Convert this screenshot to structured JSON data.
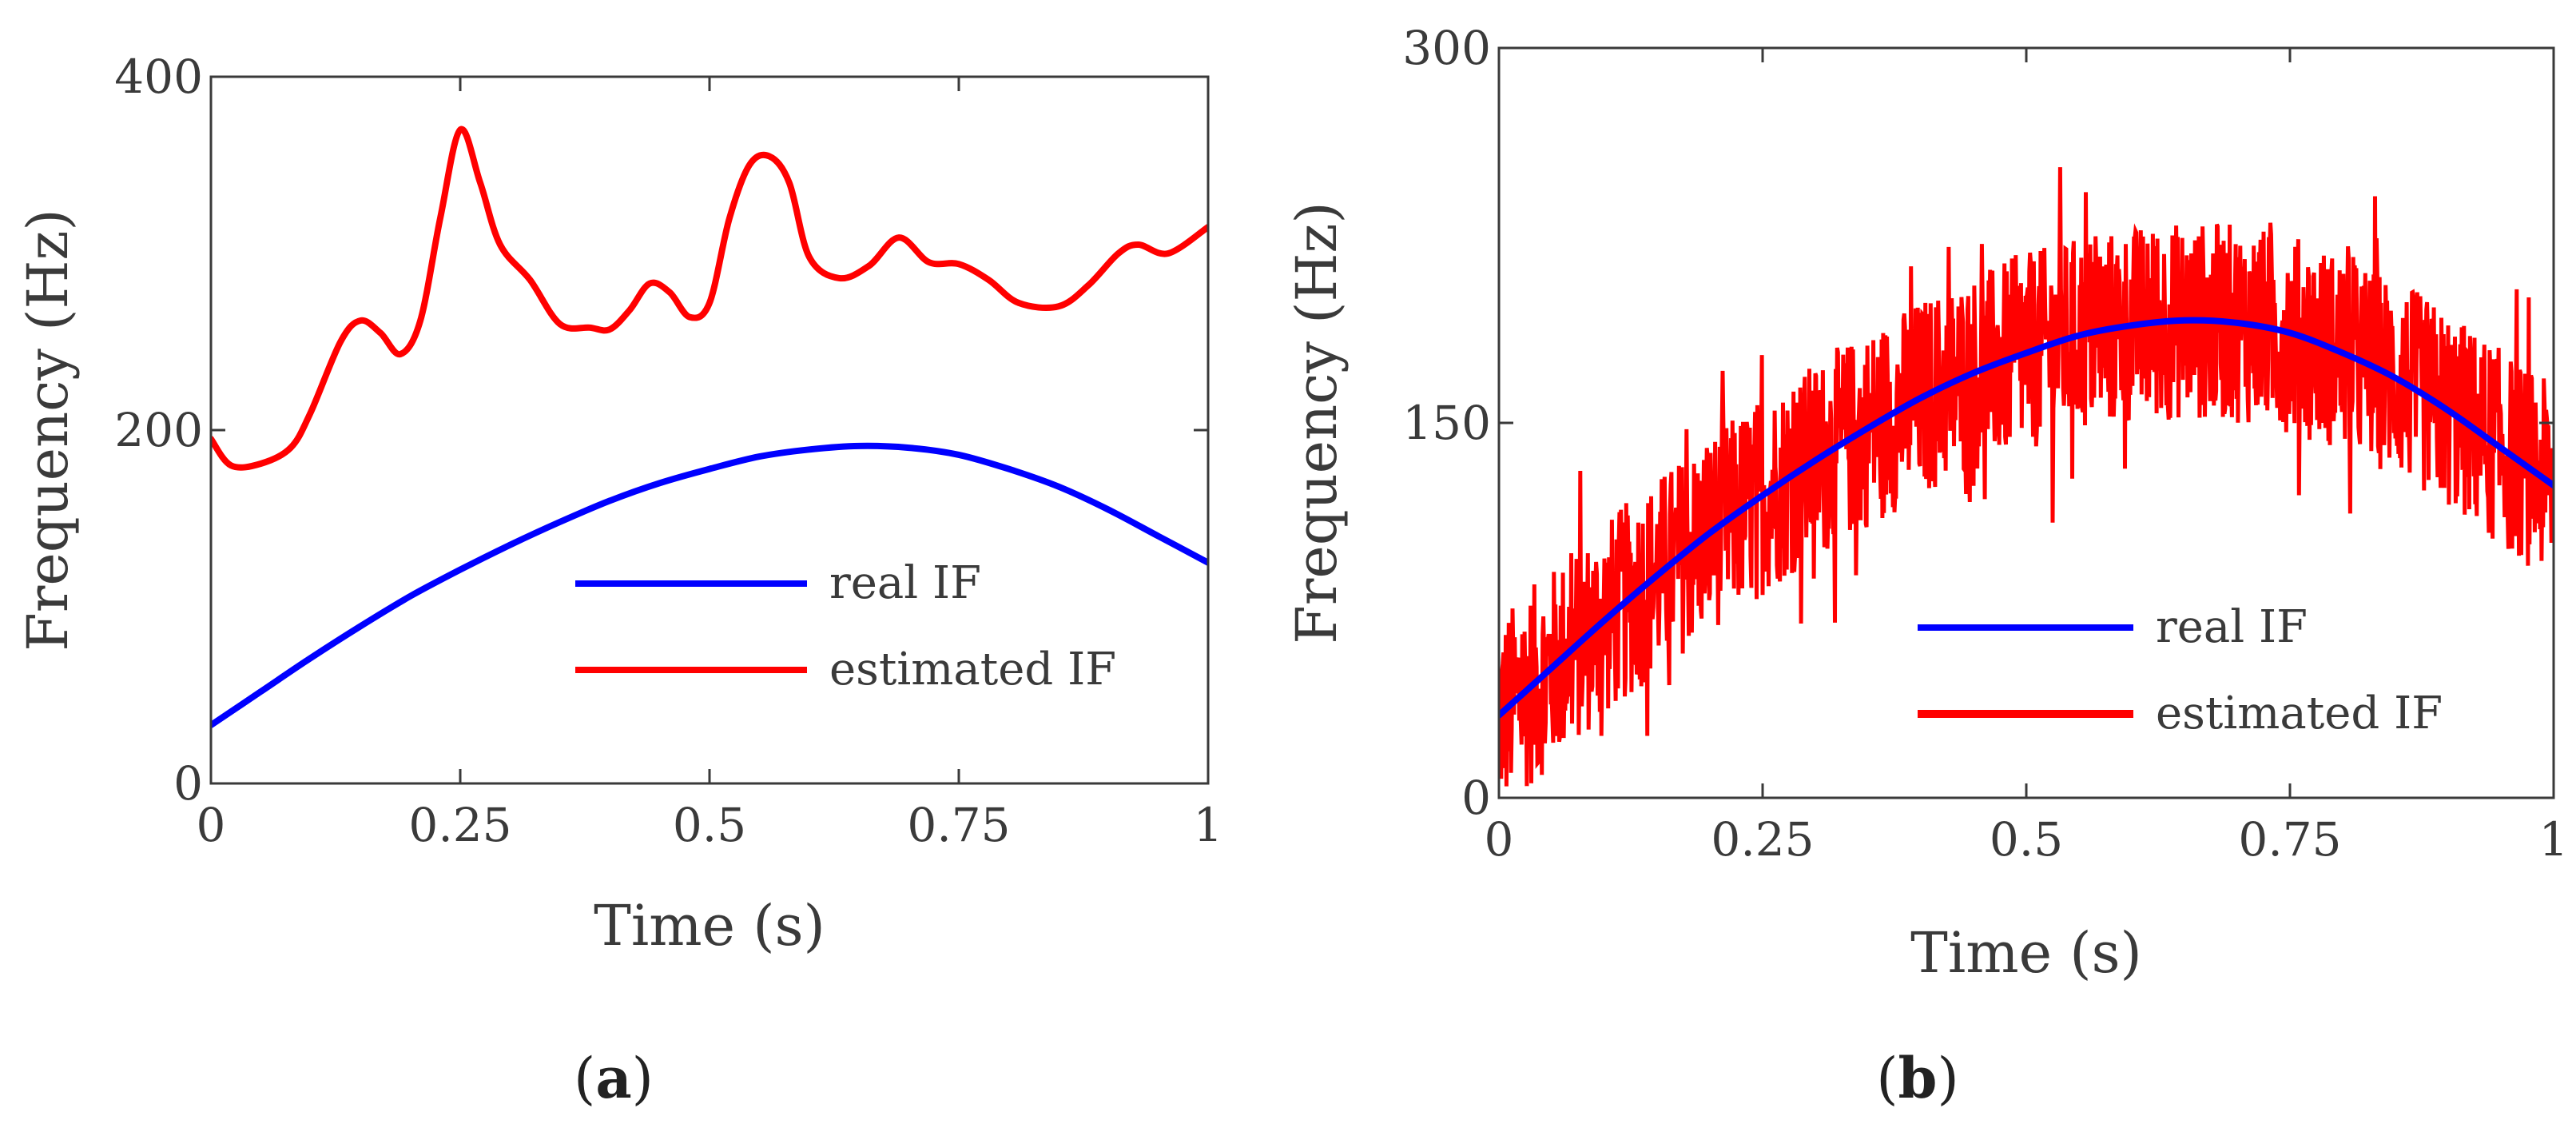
{
  "colors": {
    "real": "#0000ff",
    "estimated": "#ff0000",
    "axis": "#3a3a3a"
  },
  "chart_data": [
    {
      "id": "a",
      "type": "line",
      "caption": {
        "open": "(",
        "letter": "a",
        "close": ")"
      },
      "xlabel": "Time (s)",
      "ylabel": "Frequency (Hz)",
      "xlim": [
        0,
        1
      ],
      "ylim": [
        0,
        400
      ],
      "xticks": [
        0,
        0.25,
        0.5,
        0.75,
        1
      ],
      "xtick_labels": [
        "0",
        "0.25",
        "0.5",
        "0.75",
        "1"
      ],
      "yticks": [
        0,
        200,
        400
      ],
      "ytick_labels": [
        "0",
        "200",
        "400"
      ],
      "legend": {
        "position": "lower-right",
        "entries": [
          "real IF",
          "estimated IF"
        ]
      },
      "series": [
        {
          "name": "real IF",
          "x": [
            0,
            0.05,
            0.1,
            0.15,
            0.2,
            0.25,
            0.3,
            0.35,
            0.4,
            0.45,
            0.5,
            0.55,
            0.6,
            0.65,
            0.7,
            0.75,
            0.8,
            0.85,
            0.9,
            0.95,
            1.0
          ],
          "values": [
            33,
            52,
            71,
            89,
            106,
            121,
            135,
            148,
            160,
            170,
            178,
            185,
            189,
            191,
            190,
            186,
            178,
            168,
            155,
            140,
            125
          ]
        },
        {
          "name": "estimated IF",
          "x": [
            0,
            0.02,
            0.05,
            0.08,
            0.1,
            0.13,
            0.15,
            0.17,
            0.19,
            0.21,
            0.23,
            0.25,
            0.27,
            0.29,
            0.32,
            0.35,
            0.38,
            0.4,
            0.42,
            0.44,
            0.46,
            0.48,
            0.5,
            0.52,
            0.54,
            0.56,
            0.58,
            0.6,
            0.63,
            0.66,
            0.69,
            0.72,
            0.75,
            0.78,
            0.81,
            0.85,
            0.88,
            0.91,
            0.93,
            0.96,
            1.0
          ],
          "values": [
            195,
            180,
            181,
            190,
            210,
            250,
            262,
            255,
            243,
            262,
            320,
            370,
            340,
            305,
            285,
            260,
            258,
            257,
            268,
            283,
            278,
            264,
            272,
            320,
            350,
            355,
            340,
            298,
            286,
            293,
            309,
            295,
            294,
            285,
            272,
            270,
            282,
            300,
            305,
            300,
            315
          ]
        }
      ]
    },
    {
      "id": "b",
      "type": "line",
      "caption": {
        "open": "(",
        "letter": "b",
        "close": ")"
      },
      "xlabel": "Time (s)",
      "ylabel": "Frequency (Hz)",
      "xlim": [
        0,
        1
      ],
      "ylim": [
        0,
        300
      ],
      "xticks": [
        0,
        0.25,
        0.5,
        0.75,
        1
      ],
      "xtick_labels": [
        "0",
        "0.25",
        "0.5",
        "0.75",
        "1"
      ],
      "yticks": [
        0,
        150,
        300
      ],
      "ytick_labels": [
        "0",
        "150",
        "300"
      ],
      "legend": {
        "position": "lower-right",
        "entries": [
          "real IF",
          "estimated IF"
        ]
      },
      "series": [
        {
          "name": "real IF",
          "x": [
            0,
            0.05,
            0.1,
            0.15,
            0.2,
            0.25,
            0.3,
            0.35,
            0.4,
            0.45,
            0.5,
            0.55,
            0.6,
            0.65,
            0.7,
            0.75,
            0.8,
            0.85,
            0.9,
            0.95,
            1.0
          ],
          "values": [
            33,
            52,
            71,
            89,
            106,
            121,
            135,
            148,
            160,
            170,
            178,
            185,
            189,
            191,
            190,
            186,
            178,
            168,
            155,
            140,
            125
          ]
        },
        {
          "name": "estimated IF",
          "description_free": true,
          "x": [
            0,
            0.05,
            0.1,
            0.15,
            0.2,
            0.25,
            0.3,
            0.35,
            0.4,
            0.45,
            0.5,
            0.55,
            0.6,
            0.65,
            0.7,
            0.75,
            0.8,
            0.85,
            0.9,
            0.95,
            1.0
          ],
          "values": [
            33,
            52,
            71,
            89,
            106,
            121,
            135,
            148,
            160,
            170,
            178,
            185,
            189,
            191,
            190,
            186,
            178,
            168,
            155,
            140,
            125
          ],
          "noise_amplitude": 40,
          "noise_min": 0,
          "noise_max": 258
        }
      ]
    }
  ]
}
